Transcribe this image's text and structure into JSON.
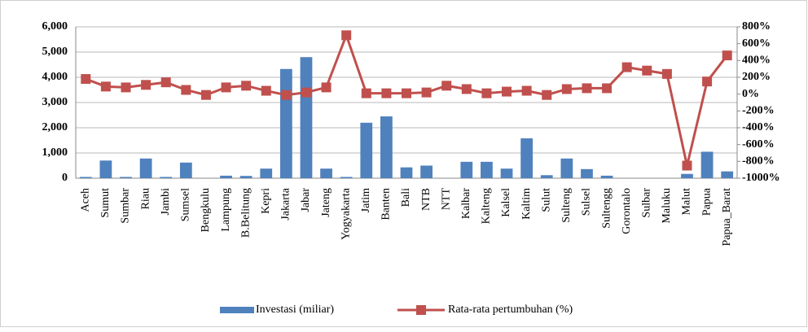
{
  "chart_data": {
    "type": "bar_line",
    "categories": [
      "Aceh",
      "Sumut",
      "Sumbar",
      "Riau",
      "Jambi",
      "Sumsel",
      "Bengkulu",
      "Lampung",
      "B.Belitung",
      "Kepri",
      "Jakarta",
      "Jabar",
      "Jateng",
      "Yogyakarta",
      "Jatim",
      "Banten",
      "Bali",
      "NTB",
      "NTT",
      "Kalbar",
      "Kalteng",
      "Kalsel",
      "Kaltim",
      "Sulut",
      "Sulteng",
      "Sulsel",
      "Sultengg",
      "Gorontalo",
      "Sulbar",
      "Maluku",
      "Malut",
      "Papua",
      "Papua_Barat"
    ],
    "series": [
      {
        "name": "Investasi (miliar)",
        "color": "#4f81bd",
        "type": "bar",
        "values": [
          50,
          700,
          50,
          780,
          50,
          620,
          0,
          100,
          90,
          380,
          4330,
          4800,
          380,
          50,
          2200,
          2450,
          430,
          500,
          0,
          650,
          650,
          380,
          1580,
          120,
          780,
          360,
          100,
          0,
          0,
          0,
          170,
          1050,
          270
        ]
      },
      {
        "name": "Rata-rata pertumbuhan (%)",
        "color": "#c0504d",
        "type": "line",
        "axis": "y2",
        "values": [
          180,
          90,
          80,
          110,
          140,
          50,
          -10,
          80,
          100,
          40,
          -10,
          20,
          80,
          700,
          10,
          10,
          10,
          20,
          100,
          60,
          10,
          30,
          40,
          -10,
          60,
          70,
          70,
          320,
          280,
          240,
          -850,
          150,
          460
        ]
      }
    ],
    "ylim": [
      0,
      6000
    ],
    "yticks": [
      0,
      {
        "value": 1000,
        "label": "1,000"
      },
      {
        "value": 2000,
        "label": "2,000"
      },
      {
        "value": 3000,
        "label": "3,000"
      },
      {
        "value": 4000,
        "label": "4,000"
      },
      {
        "value": 5000,
        "label": "5,000"
      },
      {
        "value": 6000,
        "label": "6,000"
      }
    ],
    "y2lim": [
      -1000,
      800
    ],
    "y2ticks": [
      {
        "value": -1000,
        "label": "-1000%"
      },
      {
        "value": -800,
        "label": "-800%"
      },
      {
        "value": -600,
        "label": "-600%"
      },
      {
        "value": -400,
        "label": "-400%"
      },
      {
        "value": -200,
        "label": "-200%"
      },
      {
        "value": 0,
        "label": "0%"
      },
      {
        "value": 200,
        "label": "200%"
      },
      {
        "value": 400,
        "label": "400%"
      },
      {
        "value": 600,
        "label": "600%"
      },
      {
        "value": 800,
        "label": "800%"
      }
    ],
    "grid": true,
    "legend": "bottom"
  }
}
